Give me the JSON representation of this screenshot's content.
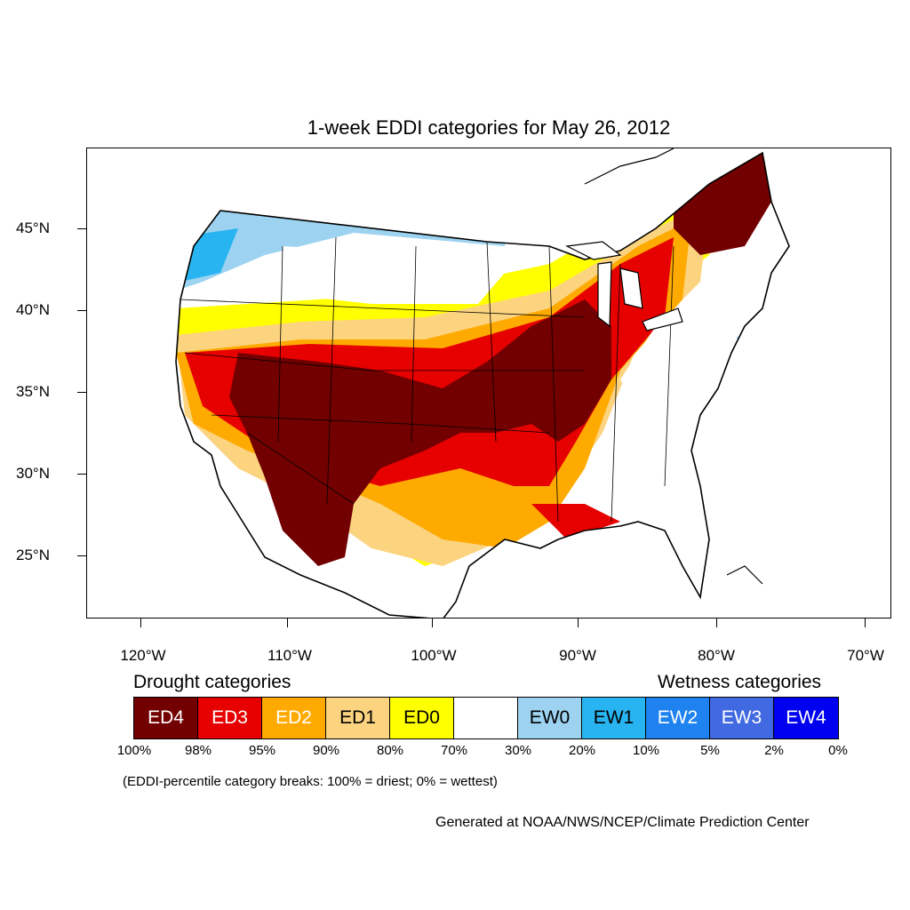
{
  "title": "1-week EDDI categories for May 26, 2012",
  "axes": {
    "lat_labels": [
      "45°N",
      "40°N",
      "35°N",
      "30°N",
      "25°N"
    ],
    "lon_labels": [
      "120°W",
      "110°W",
      "100°W",
      "90°W",
      "80°W",
      "70°W"
    ]
  },
  "legend": {
    "drought_heading": "Drought categories",
    "wetness_heading": "Wetness categories",
    "categories": [
      {
        "label": "ED4",
        "color": "#730000",
        "text_color": "#ffffff"
      },
      {
        "label": "ED3",
        "color": "#e60000",
        "text_color": "#ffffff"
      },
      {
        "label": "ED2",
        "color": "#ffaa00",
        "text_color": "#ffffff"
      },
      {
        "label": "ED1",
        "color": "#fcd37f",
        "text_color": "#000000"
      },
      {
        "label": "ED0",
        "color": "#ffff00",
        "text_color": "#000000"
      },
      {
        "label": "",
        "color": "#ffffff",
        "text_color": "#000000"
      },
      {
        "label": "EW0",
        "color": "#9dd3f0",
        "text_color": "#000000"
      },
      {
        "label": "EW1",
        "color": "#28b4f0",
        "text_color": "#000000"
      },
      {
        "label": "EW2",
        "color": "#1e82f0",
        "text_color": "#ffffff"
      },
      {
        "label": "EW3",
        "color": "#4169e1",
        "text_color": "#ffffff"
      },
      {
        "label": "EW4",
        "color": "#0000f0",
        "text_color": "#ffffff"
      }
    ],
    "breaks": [
      "100%",
      "98%",
      "95%",
      "90%",
      "80%",
      "70%",
      "30%",
      "20%",
      "10%",
      "5%",
      "2%",
      "0%"
    ],
    "note": "(EDDI-percentile category breaks: 100% = driest; 0% = wettest)"
  },
  "credit": "Generated at NOAA/NWS/NCEP/Climate Prediction Center"
}
